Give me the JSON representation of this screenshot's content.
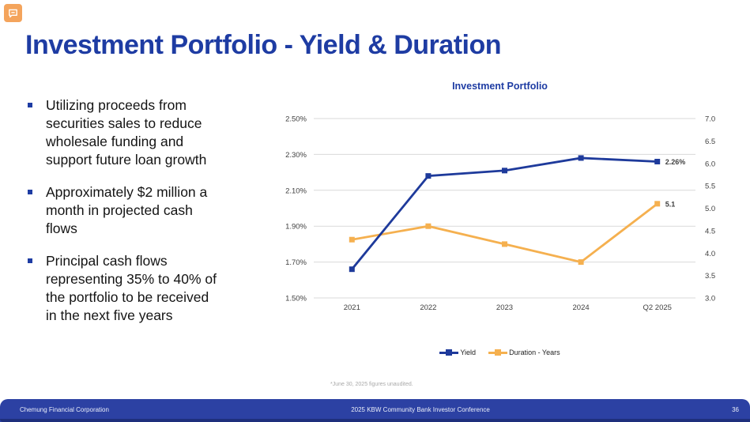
{
  "slide": {
    "title": "Investment Portfolio - Yield & Duration"
  },
  "bullets": [
    "Utilizing proceeds from\nsecurities sales to reduce\nwholesale funding and\nsupport future loan growth",
    "Approximately $2 million a\nmonth in projected cash\nflows",
    "Principal cash flows\nrepresenting 35% to 40% of\nthe portfolio to be received\nin the next five years"
  ],
  "chart_data": {
    "type": "line",
    "title": "Investment Portfolio",
    "categories": [
      "2021",
      "2022",
      "2023",
      "2024",
      "Q2 2025"
    ],
    "series": [
      {
        "name": "Yield",
        "axis": "left",
        "color": "#1e3a9b",
        "values": [
          1.66,
          2.18,
          2.21,
          2.28,
          2.26
        ],
        "last_label": "2.26%"
      },
      {
        "name": "Duration - Years",
        "axis": "right",
        "color": "#f5b04f",
        "values": [
          4.3,
          4.6,
          4.2,
          3.8,
          5.1
        ],
        "last_label": "5.1"
      }
    ],
    "left_axis": {
      "min": 1.5,
      "max": 2.5,
      "ticks": [
        {
          "value": 2.5,
          "label": "2.50%"
        },
        {
          "value": 2.3,
          "label": "2.30%"
        },
        {
          "value": 2.1,
          "label": "2.10%"
        },
        {
          "value": 1.9,
          "label": "1.90%"
        },
        {
          "value": 1.7,
          "label": "1.70%"
        },
        {
          "value": 1.5,
          "label": "1.50%"
        }
      ]
    },
    "right_axis": {
      "min": 3.0,
      "max": 7.0,
      "ticks": [
        {
          "label": "7.0"
        },
        {
          "label": "6.5"
        },
        {
          "label": "6.0"
        },
        {
          "label": "5.5"
        },
        {
          "label": "5.0"
        },
        {
          "label": "4.5"
        },
        {
          "label": "4.0"
        },
        {
          "label": "3.5"
        },
        {
          "label": "3.0"
        }
      ]
    },
    "gridlines": true,
    "legend_position": "bottom"
  },
  "footnote": "*June 30, 2025 figures unaudited.",
  "footer": {
    "company": "Chemung Financial Corporation",
    "conference": "2025 KBW Community Bank Investor Conference",
    "page_number": "36"
  },
  "colors": {
    "accent_blue": "#1e3ca3",
    "yield_blue": "#1e3a9b",
    "duration_orange": "#f5b04f",
    "footer_blue": "#2c41a3",
    "footer_dark": "#1e2f7c",
    "icon_orange": "#f4a45c",
    "grid_gray": "#d9d9d9",
    "axis_text": "#404040",
    "footnote_gray": "#a9a9a9"
  }
}
